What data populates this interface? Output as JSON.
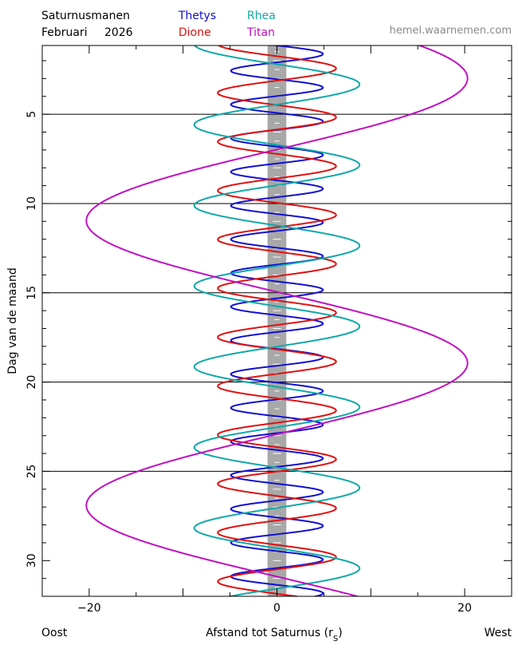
{
  "header": {
    "title_line1": "Saturnusmanen",
    "title_line2_month": "Februari",
    "title_line2_year": "2026",
    "source": "hemel.waarnemen.com"
  },
  "chart_data": {
    "type": "line",
    "orientation": "time-vertical",
    "xlabel": "Afstand tot Saturnus (r",
    "xlabel_sub": "S",
    "xlabel_close": ")",
    "ylabel": "Dag van de maand",
    "left_label": "Oost",
    "right_label": "West",
    "xlim": [
      -25,
      25
    ],
    "ylim": [
      1.15,
      32
    ],
    "xticks": [
      -20,
      0,
      20
    ],
    "xtick_labels": [
      "−20",
      "0",
      "20"
    ],
    "yticks": [
      5,
      10,
      15,
      20,
      25,
      30
    ],
    "ytick_labels": [
      "5",
      "10",
      "15",
      "20",
      "25",
      "30"
    ],
    "day_lines": [
      5,
      10,
      15,
      20,
      25
    ],
    "planet_band": {
      "half_width": 1.0,
      "color": "#a8a8a8"
    },
    "legend_placement": "top",
    "series": [
      {
        "name": "Thetys",
        "color": "#1010d0",
        "amplitude": 4.9,
        "period_days": 1.888,
        "t0": 1.15
      },
      {
        "name": "Dione",
        "color": "#e01010",
        "amplitude": 6.3,
        "period_days": 2.737,
        "t0": 1.75
      },
      {
        "name": "Rhea",
        "color": "#10a8a8",
        "amplitude": 8.8,
        "period_days": 4.518,
        "t0": 2.2
      },
      {
        "name": "Titan",
        "color": "#c010c0",
        "amplitude": 20.3,
        "period_days": 15.945,
        "t0": 14.95
      }
    ]
  }
}
